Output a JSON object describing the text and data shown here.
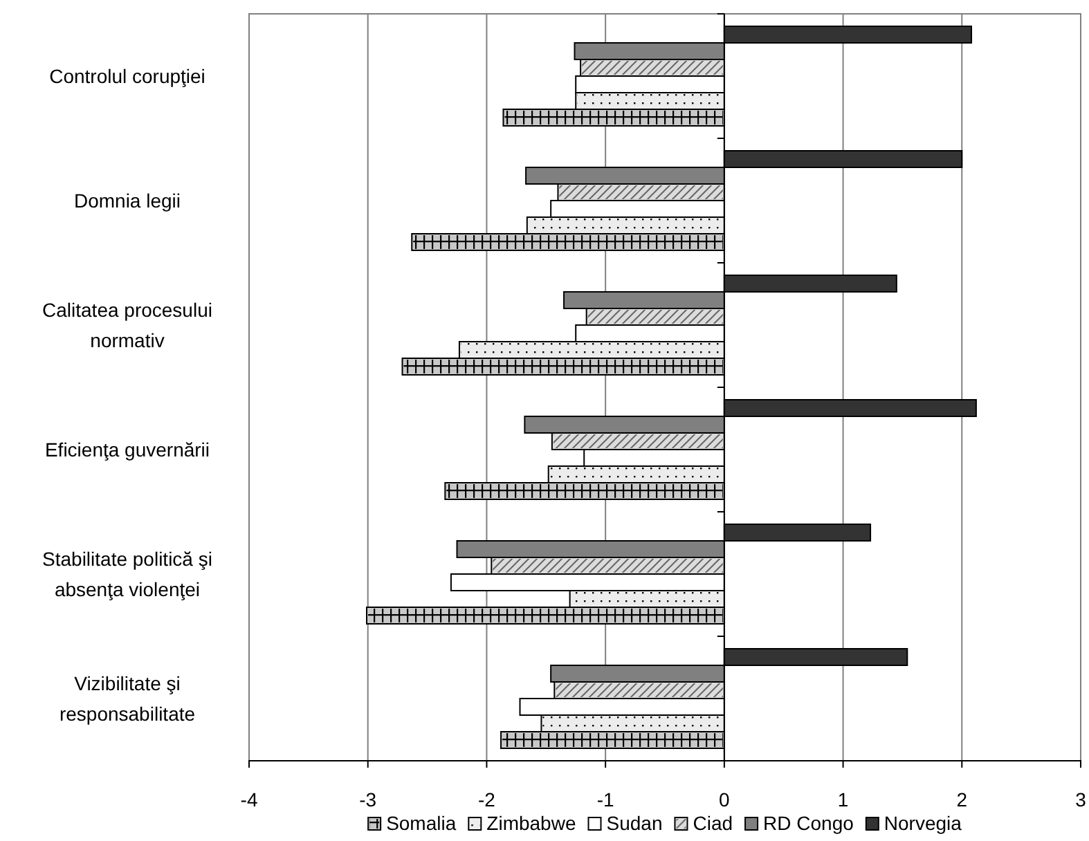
{
  "chart_data": {
    "type": "bar",
    "orientation": "horizontal",
    "categories": [
      "Controlul corupţiei",
      "Domnia legii",
      "Calitatea procesului normativ",
      "Eficienţa guvernării",
      "Stabilitate politică şi absenţa violenţei",
      "Vizibilitate şi responsabilitate"
    ],
    "series": [
      {
        "name": "Somalia",
        "color": "#c8c8c8",
        "values": [
          -1.86,
          -2.63,
          -2.71,
          -2.35,
          -3.01,
          -1.88
        ]
      },
      {
        "name": "Zimbabwe",
        "color": "#ececec",
        "values": [
          -1.25,
          -1.66,
          -2.23,
          -1.48,
          -1.3,
          -1.54
        ]
      },
      {
        "name": "Sudan",
        "color": "#ffffff",
        "values": [
          -1.25,
          -1.46,
          -1.25,
          -1.18,
          -2.3,
          -1.72
        ]
      },
      {
        "name": "Ciad",
        "color": "#dcdcdc",
        "values": [
          -1.21,
          -1.4,
          -1.16,
          -1.45,
          -1.96,
          -1.43
        ]
      },
      {
        "name": "RD Congo",
        "color": "#808080",
        "values": [
          -1.26,
          -1.67,
          -1.35,
          -1.68,
          -2.25,
          -1.46
        ]
      },
      {
        "name": "Norvegia",
        "color": "#333333",
        "values": [
          2.08,
          2.0,
          1.45,
          2.12,
          1.23,
          1.54
        ]
      }
    ],
    "xlim": [
      -4,
      3
    ],
    "xticks": [
      -4,
      -3,
      -2,
      -1,
      0,
      1,
      2,
      3
    ],
    "grid": "x",
    "legend": "bottom"
  }
}
